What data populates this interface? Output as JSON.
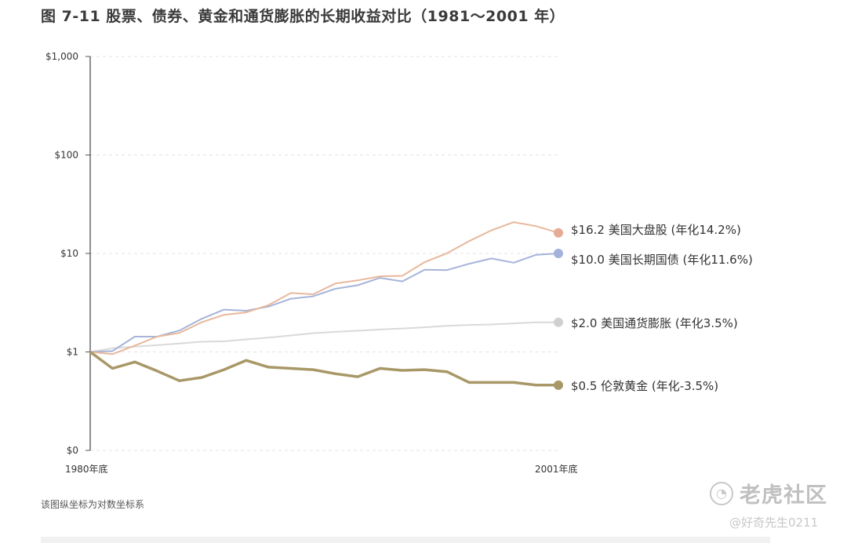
{
  "title": "图 7-11  股票、债券、黄金和通货膨胀的长期收益对比（1981～2001 年）",
  "note": "该图纵坐标为对数坐标系",
  "brand": {
    "name": "老虎社区",
    "handle": "@好奇先生0211",
    "icon": "tiger-logo-icon"
  },
  "chart_data": {
    "type": "line",
    "yscale": "log",
    "ylim": [
      0.1,
      1000
    ],
    "y_ticks": [
      {
        "value": 0.1,
        "label": "$0"
      },
      {
        "value": 1,
        "label": "$1"
      },
      {
        "value": 10,
        "label": "$10"
      },
      {
        "value": 100,
        "label": "$100"
      },
      {
        "value": 1000,
        "label": "$1,000"
      }
    ],
    "x_ticks": [
      {
        "value": 1980,
        "label": "1980年底"
      },
      {
        "value": 2001,
        "label": "2001年底"
      }
    ],
    "xlim": [
      1980,
      2001
    ],
    "grid": "horizontal-dashed",
    "legend": "end-labels",
    "series": [
      {
        "name": "$16.2 美国大盘股 (年化14.2%)",
        "color": "#e8b89c",
        "dot_color": "#e6ab95",
        "x": [
          1980,
          1981,
          1982,
          1983,
          1984,
          1985,
          1986,
          1987,
          1988,
          1989,
          1990,
          1991,
          1992,
          1993,
          1994,
          1995,
          1996,
          1997,
          1998,
          1999,
          2000,
          2001
        ],
        "y": [
          1.0,
          0.95,
          1.16,
          1.43,
          1.56,
          2.0,
          2.38,
          2.52,
          2.99,
          3.97,
          3.85,
          4.95,
          5.33,
          5.86,
          5.93,
          8.16,
          10.03,
          13.37,
          17.19,
          20.81,
          18.92,
          16.2
        ]
      },
      {
        "name": "$10.0 美国长期国债 (年化11.6%)",
        "color": "#a6b4d8",
        "dot_color": "#a3b2dc",
        "x": [
          1980,
          1981,
          1982,
          1983,
          1984,
          1985,
          1986,
          1987,
          1988,
          1989,
          1990,
          1991,
          1992,
          1993,
          1994,
          1995,
          1996,
          1997,
          1998,
          1999,
          2000,
          2001
        ],
        "y": [
          1.0,
          1.02,
          1.43,
          1.43,
          1.65,
          2.17,
          2.69,
          2.62,
          2.89,
          3.47,
          3.67,
          4.38,
          4.76,
          5.65,
          5.2,
          6.84,
          6.78,
          7.87,
          8.9,
          8.05,
          9.7,
          10.0
        ]
      },
      {
        "name": "$2.0 美国通货膨胀 (年化3.5%)",
        "color": "#d9d9d9",
        "dot_color": "#d0d0d0",
        "x": [
          1980,
          1981,
          1982,
          1983,
          1984,
          1985,
          1986,
          1987,
          1988,
          1989,
          1990,
          1991,
          1992,
          1993,
          1994,
          1995,
          1996,
          1997,
          1998,
          1999,
          2000,
          2001
        ],
        "y": [
          1.0,
          1.09,
          1.13,
          1.17,
          1.22,
          1.27,
          1.28,
          1.34,
          1.4,
          1.47,
          1.55,
          1.6,
          1.64,
          1.69,
          1.73,
          1.78,
          1.84,
          1.88,
          1.9,
          1.95,
          2.0,
          2.0
        ]
      },
      {
        "name": "$0.5 伦敦黄金 (年化-3.5%)",
        "color": "#a89867",
        "dot_color": "#a89867",
        "x": [
          1980,
          1981,
          1982,
          1983,
          1984,
          1985,
          1986,
          1987,
          1988,
          1989,
          1990,
          1991,
          1992,
          1993,
          1994,
          1995,
          1996,
          1997,
          1998,
          1999,
          2000,
          2001
        ],
        "y": [
          1.0,
          0.68,
          0.79,
          0.64,
          0.51,
          0.55,
          0.66,
          0.82,
          0.7,
          0.68,
          0.66,
          0.6,
          0.56,
          0.68,
          0.65,
          0.66,
          0.63,
          0.49,
          0.49,
          0.49,
          0.46,
          0.46
        ]
      }
    ]
  }
}
